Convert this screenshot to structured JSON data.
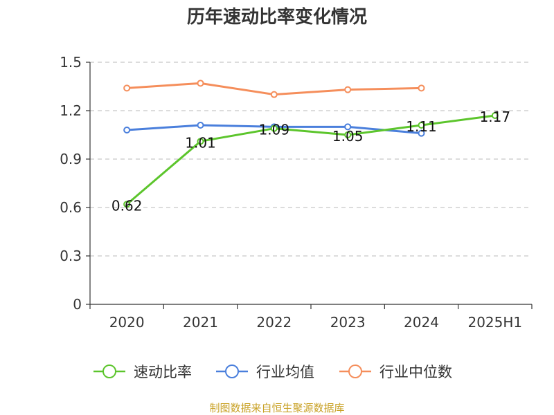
{
  "chart_data": {
    "type": "line",
    "title": "历年速动比率变化情况",
    "categories": [
      "2020",
      "2021",
      "2022",
      "2023",
      "2024",
      "2025H1"
    ],
    "ylim": [
      0,
      1.5
    ],
    "yticks": [
      "0",
      "0.3",
      "0.6",
      "0.9",
      "1.2",
      "1.5"
    ],
    "grid": true,
    "legend_position": "bottom",
    "series": [
      {
        "name": "速动比率",
        "color": "#5cc52c",
        "values": [
          0.62,
          1.01,
          1.09,
          1.05,
          1.11,
          1.17
        ],
        "labels": [
          "0.62",
          "1.01",
          "1.09",
          "1.05",
          "1.11",
          "1.17"
        ],
        "show_labels": true
      },
      {
        "name": "行业均值",
        "color": "#4a7fdc",
        "values": [
          1.08,
          1.11,
          1.1,
          1.1,
          1.06,
          null
        ],
        "show_labels": false
      },
      {
        "name": "行业中位数",
        "color": "#f58e5b",
        "values": [
          1.34,
          1.37,
          1.3,
          1.33,
          1.34,
          null
        ],
        "show_labels": false
      }
    ],
    "source_text": "制图数据来自恒生聚源数据库",
    "source_color": "#c9a227"
  }
}
